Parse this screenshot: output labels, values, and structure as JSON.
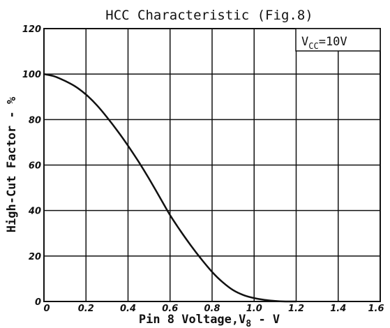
{
  "chart_data": {
    "type": "line",
    "title": "HCC Characteristic (Fig.8)",
    "xlabel_prefix": "Pin 8 Voltage,V",
    "xlabel_sub": "8",
    "xlabel_suffix": " - V",
    "ylabel": "High-Cut Factor - %",
    "condition_prefix": "V",
    "condition_sub": "CC",
    "condition_suffix": "=10V",
    "xlim": [
      0,
      1.6
    ],
    "ylim": [
      0,
      120
    ],
    "grid": true,
    "x_ticks": [
      {
        "value": 0,
        "label": "0"
      },
      {
        "value": 0.2,
        "label": "0.2"
      },
      {
        "value": 0.4,
        "label": "0.4"
      },
      {
        "value": 0.6,
        "label": "0.6"
      },
      {
        "value": 0.8,
        "label": "0.8"
      },
      {
        "value": 1.0,
        "label": "1.0"
      },
      {
        "value": 1.2,
        "label": "1.2"
      },
      {
        "value": 1.4,
        "label": "1.4"
      },
      {
        "value": 1.6,
        "label": "1.6"
      }
    ],
    "y_ticks": [
      {
        "value": 0,
        "label": "0"
      },
      {
        "value": 20,
        "label": "20"
      },
      {
        "value": 40,
        "label": "40"
      },
      {
        "value": 60,
        "label": "60"
      },
      {
        "value": 80,
        "label": "80"
      },
      {
        "value": 100,
        "label": "100"
      },
      {
        "value": 120,
        "label": "120"
      }
    ],
    "series": [
      {
        "x": [
          0,
          0.05,
          0.1,
          0.15,
          0.2,
          0.25,
          0.3,
          0.35,
          0.4,
          0.45,
          0.5,
          0.55,
          0.6,
          0.65,
          0.7,
          0.75,
          0.8,
          0.85,
          0.9,
          0.95,
          1.0,
          1.05,
          1.1,
          1.15,
          1.2
        ],
        "values": [
          100,
          99,
          97,
          94.5,
          91,
          86.5,
          81,
          75,
          68.5,
          61.5,
          54,
          46,
          38,
          31,
          24.5,
          18.5,
          13,
          8.5,
          5,
          2.8,
          1.5,
          0.7,
          0.2,
          0,
          0
        ]
      }
    ],
    "colors": {
      "line": "#111111",
      "grid": "#111111",
      "background": "#ffffff"
    }
  }
}
